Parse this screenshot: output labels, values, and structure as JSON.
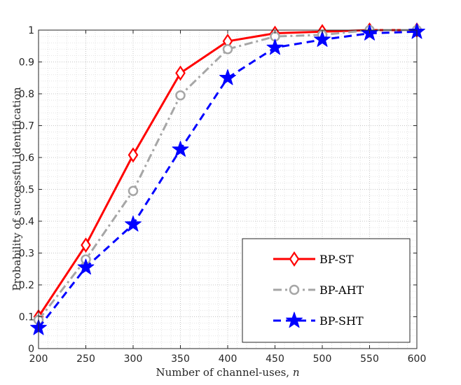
{
  "chart_data": {
    "type": "line",
    "xlabel_text": "Number of channel-uses,",
    "xlabel_var": "n",
    "ylabel": "Probability of successful identification",
    "x": [
      200,
      250,
      300,
      350,
      400,
      450,
      500,
      550,
      600
    ],
    "xlim": [
      200,
      600
    ],
    "ylim": [
      0,
      1
    ],
    "xticks": [
      "200",
      "250",
      "300",
      "350",
      "400",
      "450",
      "500",
      "550",
      "600"
    ],
    "yticks": [
      "0",
      "0.1",
      "0.2",
      "0.3",
      "0.4",
      "0.5",
      "0.6",
      "0.7",
      "0.8",
      "0.9",
      "1"
    ],
    "grid": "major and minor, dotted",
    "legend_position": "bottom-right",
    "series": [
      {
        "name": "BP-ST",
        "values": [
          0.1,
          0.325,
          0.608,
          0.865,
          0.965,
          0.99,
          0.995,
          1.0,
          1.0
        ],
        "color": "#ff0000",
        "line": "solid",
        "marker": "diamond"
      },
      {
        "name": "BP-AHT",
        "values": [
          0.09,
          0.28,
          0.495,
          0.795,
          0.94,
          0.98,
          0.985,
          1.0,
          1.0
        ],
        "color": "#a6a6a6",
        "line": "dash-dot",
        "marker": "circle"
      },
      {
        "name": "BP-SHT",
        "values": [
          0.065,
          0.255,
          0.39,
          0.625,
          0.85,
          0.945,
          0.97,
          0.99,
          0.995
        ],
        "color": "#0000ff",
        "line": "dashed",
        "marker": "star"
      }
    ]
  }
}
